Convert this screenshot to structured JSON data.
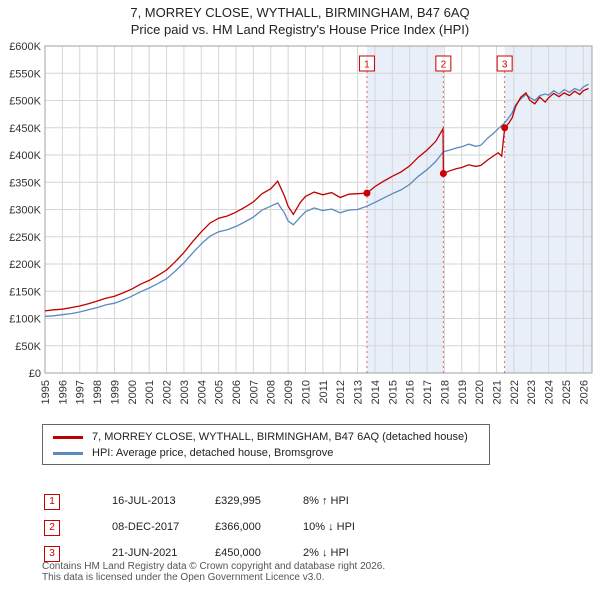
{
  "colors": {
    "band": "#e9eff9",
    "grid": "#d6d6d6",
    "plot_border": "#a0a0a0",
    "sale_line": "#e06666",
    "marker": "#cc0000",
    "axis_text": "#333333"
  },
  "chart_data": {
    "type": "line",
    "title": "7, MORREY CLOSE, WYTHALL, BIRMINGHAM, B47 6AQ",
    "subtitle": "Price paid vs. HM Land Registry's House Price Index (HPI)",
    "xlabel": "",
    "ylabel": "",
    "values_unit": "GBP thousands",
    "x_range": [
      1995,
      2026.5
    ],
    "y_range": [
      0,
      600
    ],
    "y_tick_step": 50,
    "y_tick_labels": [
      "£0",
      "£50K",
      "£100K",
      "£150K",
      "£200K",
      "£250K",
      "£300K",
      "£350K",
      "£400K",
      "£450K",
      "£500K",
      "£550K",
      "£600K"
    ],
    "x_ticks": [
      1995,
      1996,
      1997,
      1998,
      1999,
      2000,
      2001,
      2002,
      2003,
      2004,
      2005,
      2006,
      2007,
      2008,
      2009,
      2010,
      2011,
      2012,
      2013,
      2014,
      2015,
      2016,
      2017,
      2018,
      2019,
      2020,
      2021,
      2022,
      2023,
      2024,
      2025,
      2026
    ],
    "grid": true,
    "legend_position": "below",
    "shaded_regions": [
      [
        2013.54,
        2017.94
      ],
      [
        2021.47,
        2026.5
      ]
    ],
    "series": [
      {
        "id": "property",
        "name": "7, MORREY CLOSE, WYTHALL, BIRMINGHAM, B47 6AQ (detached house)",
        "color": "#c00000",
        "points": [
          [
            1995.0,
            114
          ],
          [
            1995.5,
            116
          ],
          [
            1996.0,
            117
          ],
          [
            1996.5,
            120
          ],
          [
            1997.0,
            123
          ],
          [
            1997.5,
            127
          ],
          [
            1998.0,
            132
          ],
          [
            1998.5,
            137
          ],
          [
            1999.0,
            141
          ],
          [
            1999.5,
            147
          ],
          [
            2000.0,
            154
          ],
          [
            2000.5,
            163
          ],
          [
            2001.0,
            170
          ],
          [
            2001.5,
            179
          ],
          [
            2002.0,
            189
          ],
          [
            2002.5,
            204
          ],
          [
            2003.0,
            221
          ],
          [
            2003.5,
            241
          ],
          [
            2004.0,
            259
          ],
          [
            2004.5,
            275
          ],
          [
            2005.0,
            284
          ],
          [
            2005.5,
            288
          ],
          [
            2006.0,
            295
          ],
          [
            2006.5,
            304
          ],
          [
            2007.0,
            314
          ],
          [
            2007.5,
            329
          ],
          [
            2008.0,
            338
          ],
          [
            2008.4,
            352
          ],
          [
            2008.8,
            324
          ],
          [
            2009.0,
            306
          ],
          [
            2009.3,
            291
          ],
          [
            2009.7,
            313
          ],
          [
            2010.0,
            324
          ],
          [
            2010.5,
            332
          ],
          [
            2011.0,
            327
          ],
          [
            2011.5,
            331
          ],
          [
            2012.0,
            322
          ],
          [
            2012.5,
            328
          ],
          [
            2013.0,
            329
          ],
          [
            2013.54,
            330
          ],
          [
            2014.0,
            342
          ],
          [
            2014.5,
            352
          ],
          [
            2015.0,
            361
          ],
          [
            2015.5,
            369
          ],
          [
            2016.0,
            380
          ],
          [
            2016.5,
            396
          ],
          [
            2017.0,
            409
          ],
          [
            2017.5,
            425
          ],
          [
            2017.92,
            448
          ],
          [
            2017.94,
            366
          ],
          [
            2018.3,
            371
          ],
          [
            2018.7,
            375
          ],
          [
            2019.0,
            377
          ],
          [
            2019.4,
            382
          ],
          [
            2019.8,
            379
          ],
          [
            2020.1,
            381
          ],
          [
            2020.5,
            391
          ],
          [
            2020.9,
            400
          ],
          [
            2021.1,
            404
          ],
          [
            2021.3,
            398
          ],
          [
            2021.47,
            450
          ],
          [
            2021.7,
            458
          ],
          [
            2021.9,
            468
          ],
          [
            2022.1,
            489
          ],
          [
            2022.4,
            506
          ],
          [
            2022.7,
            514
          ],
          [
            2022.9,
            501
          ],
          [
            2023.2,
            494
          ],
          [
            2023.5,
            506
          ],
          [
            2023.8,
            497
          ],
          [
            2024.0,
            505
          ],
          [
            2024.3,
            513
          ],
          [
            2024.6,
            507
          ],
          [
            2024.9,
            514
          ],
          [
            2025.2,
            509
          ],
          [
            2025.5,
            517
          ],
          [
            2025.8,
            511
          ],
          [
            2026.0,
            518
          ],
          [
            2026.3,
            522
          ]
        ]
      },
      {
        "id": "hpi",
        "name": "HPI: Average price, detached house, Bromsgrove",
        "color": "#5b8abd",
        "points": [
          [
            1995.0,
            104
          ],
          [
            1995.5,
            105
          ],
          [
            1996.0,
            107
          ],
          [
            1996.5,
            109
          ],
          [
            1997.0,
            112
          ],
          [
            1997.5,
            116
          ],
          [
            1998.0,
            120
          ],
          [
            1998.5,
            125
          ],
          [
            1999.0,
            128
          ],
          [
            1999.5,
            134
          ],
          [
            2000.0,
            141
          ],
          [
            2000.5,
            149
          ],
          [
            2001.0,
            156
          ],
          [
            2001.5,
            164
          ],
          [
            2002.0,
            173
          ],
          [
            2002.5,
            187
          ],
          [
            2003.0,
            202
          ],
          [
            2003.5,
            220
          ],
          [
            2004.0,
            237
          ],
          [
            2004.5,
            251
          ],
          [
            2005.0,
            259
          ],
          [
            2005.5,
            263
          ],
          [
            2006.0,
            269
          ],
          [
            2006.5,
            277
          ],
          [
            2007.0,
            286
          ],
          [
            2007.5,
            299
          ],
          [
            2008.0,
            306
          ],
          [
            2008.4,
            312
          ],
          [
            2008.8,
            293
          ],
          [
            2009.0,
            279
          ],
          [
            2009.3,
            272
          ],
          [
            2009.7,
            286
          ],
          [
            2010.0,
            296
          ],
          [
            2010.5,
            303
          ],
          [
            2011.0,
            298
          ],
          [
            2011.5,
            301
          ],
          [
            2012.0,
            294
          ],
          [
            2012.5,
            299
          ],
          [
            2013.0,
            300
          ],
          [
            2013.54,
            306
          ],
          [
            2014.0,
            313
          ],
          [
            2014.5,
            321
          ],
          [
            2015.0,
            329
          ],
          [
            2015.5,
            336
          ],
          [
            2016.0,
            346
          ],
          [
            2016.5,
            361
          ],
          [
            2017.0,
            373
          ],
          [
            2017.5,
            388
          ],
          [
            2017.94,
            406
          ],
          [
            2018.3,
            409
          ],
          [
            2018.7,
            413
          ],
          [
            2019.0,
            415
          ],
          [
            2019.4,
            420
          ],
          [
            2019.8,
            416
          ],
          [
            2020.1,
            418
          ],
          [
            2020.5,
            431
          ],
          [
            2020.9,
            442
          ],
          [
            2021.1,
            448
          ],
          [
            2021.47,
            459
          ],
          [
            2021.7,
            468
          ],
          [
            2021.9,
            477
          ],
          [
            2022.1,
            492
          ],
          [
            2022.4,
            503
          ],
          [
            2022.7,
            511
          ],
          [
            2022.9,
            506
          ],
          [
            2023.2,
            500
          ],
          [
            2023.5,
            509
          ],
          [
            2023.8,
            512
          ],
          [
            2024.0,
            510
          ],
          [
            2024.3,
            518
          ],
          [
            2024.6,
            512
          ],
          [
            2024.9,
            520
          ],
          [
            2025.2,
            515
          ],
          [
            2025.5,
            522
          ],
          [
            2025.8,
            518
          ],
          [
            2026.0,
            525
          ],
          [
            2026.3,
            530
          ]
        ]
      }
    ]
  },
  "transactions": [
    {
      "n": "1",
      "date": "16-JUL-2013",
      "price": "£329,995",
      "vs_hpi": "8% ↑ HPI",
      "x": 2013.54,
      "value": 329.995
    },
    {
      "n": "2",
      "date": "08-DEC-2017",
      "price": "£366,000",
      "vs_hpi": "10% ↓ HPI",
      "x": 2017.94,
      "value": 366
    },
    {
      "n": "3",
      "date": "21-JUN-2021",
      "price": "£450,000",
      "vs_hpi": "2% ↓ HPI",
      "x": 2021.47,
      "value": 450
    }
  ],
  "footer": {
    "line1": "Contains HM Land Registry data © Crown copyright and database right 2026.",
    "line2": "This data is licensed under the Open Government Licence v3.0."
  }
}
